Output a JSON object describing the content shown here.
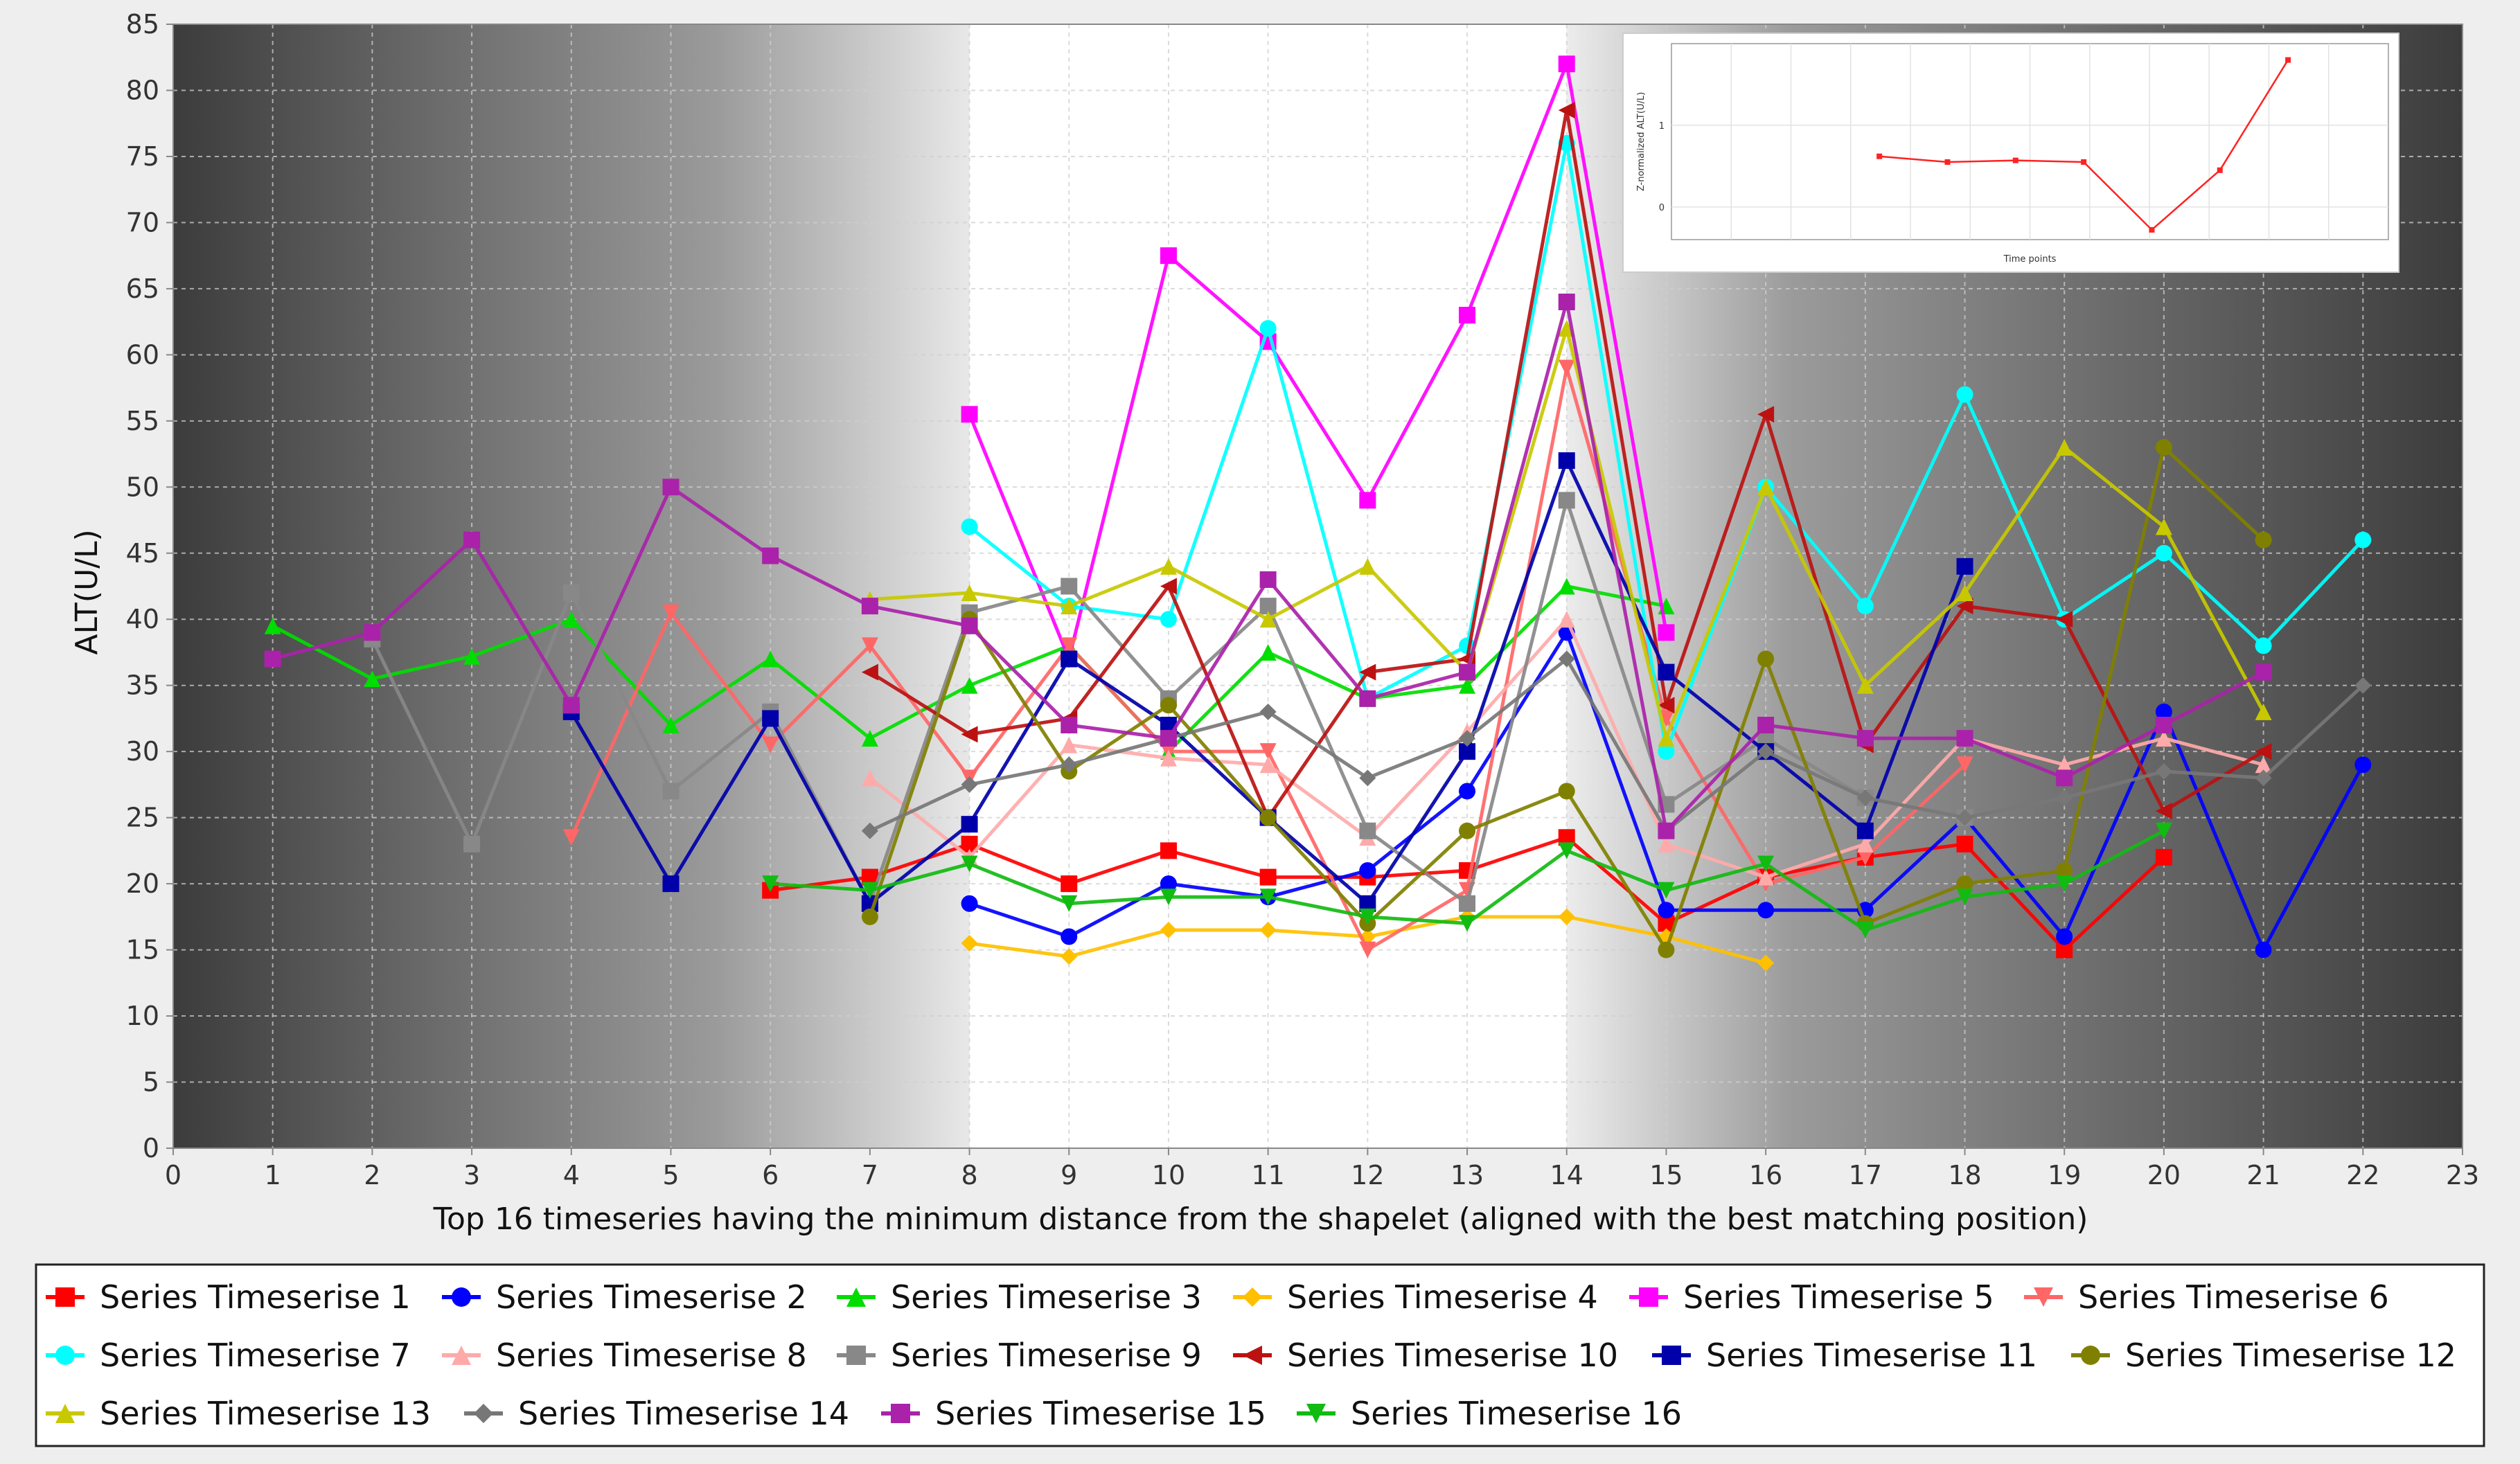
{
  "chart_data": {
    "type": "line",
    "title": "",
    "xlabel": "Top 16 timeseries having the minimum distance from the shapelet (aligned with the best matching position)",
    "ylabel": "ALT(U/L)",
    "xlim": [
      0,
      23
    ],
    "ylim": [
      0,
      85
    ],
    "x_ticks": [
      0,
      1,
      2,
      3,
      4,
      5,
      6,
      7,
      8,
      9,
      10,
      11,
      12,
      13,
      14,
      15,
      16,
      17,
      18,
      19,
      20,
      21,
      22,
      23
    ],
    "y_ticks": [
      0,
      5,
      10,
      15,
      20,
      25,
      30,
      35,
      40,
      45,
      50,
      55,
      60,
      65,
      70,
      75,
      80,
      85
    ],
    "grid": true,
    "legend_position": "bottom",
    "shapelet_region": [
      8,
      14
    ],
    "series": [
      {
        "name": "Series Timeserise 1",
        "color": "#ff0000",
        "marker": "square",
        "points": [
          [
            6,
            19.5
          ],
          [
            7,
            20.5
          ],
          [
            8,
            23
          ],
          [
            9,
            20
          ],
          [
            10,
            22.5
          ],
          [
            11,
            20.5
          ],
          [
            12,
            20.5
          ],
          [
            13,
            21
          ],
          [
            14,
            23.5
          ],
          [
            15,
            17
          ],
          [
            16,
            20.5
          ],
          [
            17,
            22
          ],
          [
            18,
            23
          ],
          [
            19,
            15
          ],
          [
            20,
            22
          ]
        ]
      },
      {
        "name": "Series Timeserise 2",
        "color": "#0000ff",
        "marker": "circle",
        "points": [
          [
            8,
            18.5
          ],
          [
            9,
            16
          ],
          [
            10,
            20
          ],
          [
            11,
            19
          ],
          [
            12,
            21
          ],
          [
            13,
            27
          ],
          [
            14,
            39
          ],
          [
            15,
            18
          ],
          [
            16,
            18
          ],
          [
            17,
            18
          ],
          [
            18,
            25
          ],
          [
            19,
            16
          ],
          [
            20,
            33
          ],
          [
            21,
            15
          ],
          [
            22,
            29
          ]
        ]
      },
      {
        "name": "Series Timeserise 3",
        "color": "#00dd00",
        "marker": "triangle-up",
        "points": [
          [
            1,
            39.5
          ],
          [
            2,
            35.5
          ],
          [
            3,
            37.2
          ],
          [
            4,
            40
          ],
          [
            5,
            32
          ],
          [
            6,
            37
          ],
          [
            7,
            31
          ],
          [
            8,
            35
          ],
          [
            9,
            38
          ],
          [
            10,
            30
          ],
          [
            11,
            37.5
          ],
          [
            12,
            34
          ],
          [
            13,
            35
          ],
          [
            14,
            42.5
          ],
          [
            15,
            41
          ]
        ]
      },
      {
        "name": "Series Timeserise 4",
        "color": "#ffc000",
        "marker": "diamond",
        "points": [
          [
            8,
            15.5
          ],
          [
            9,
            14.5
          ],
          [
            10,
            16.5
          ],
          [
            11,
            16.5
          ],
          [
            12,
            16
          ],
          [
            13,
            17.5
          ],
          [
            14,
            17.5
          ],
          [
            15,
            16
          ],
          [
            16,
            14
          ]
        ]
      },
      {
        "name": "Series Timeserise 5",
        "color": "#ff00ff",
        "marker": "square",
        "points": [
          [
            8,
            55.5
          ],
          [
            9,
            37
          ],
          [
            10,
            67.5
          ],
          [
            11,
            61
          ],
          [
            12,
            49
          ],
          [
            13,
            63
          ],
          [
            14,
            82
          ],
          [
            15,
            39
          ]
        ]
      },
      {
        "name": "Series Timeserise 6",
        "color": "#ff6666",
        "marker": "triangle-down",
        "points": [
          [
            4,
            23.5
          ],
          [
            5,
            40.5
          ],
          [
            6,
            30.5
          ],
          [
            7,
            38
          ],
          [
            8,
            28
          ],
          [
            9,
            38
          ],
          [
            10,
            30
          ],
          [
            11,
            30
          ],
          [
            12,
            15
          ],
          [
            13,
            19.5
          ],
          [
            14,
            59
          ],
          [
            15,
            32.5
          ],
          [
            16,
            20
          ],
          [
            17,
            22
          ],
          [
            18,
            29
          ]
        ]
      },
      {
        "name": "Series Timeserise 7",
        "color": "#00ffff",
        "marker": "circle",
        "points": [
          [
            8,
            47
          ],
          [
            9,
            41
          ],
          [
            10,
            40
          ],
          [
            11,
            62
          ],
          [
            12,
            34
          ],
          [
            13,
            38
          ],
          [
            14,
            76
          ],
          [
            15,
            30
          ],
          [
            16,
            50
          ],
          [
            17,
            41
          ],
          [
            18,
            57
          ],
          [
            19,
            40
          ],
          [
            20,
            45
          ],
          [
            21,
            38
          ],
          [
            22,
            46
          ]
        ]
      },
      {
        "name": "Series Timeserise 8",
        "color": "#ffaaaa",
        "marker": "triangle-up",
        "points": [
          [
            7,
            28
          ],
          [
            8,
            22
          ],
          [
            9,
            30.5
          ],
          [
            10,
            29.5
          ],
          [
            11,
            29
          ],
          [
            12,
            23.5
          ],
          [
            13,
            31.5
          ],
          [
            14,
            40
          ],
          [
            15,
            23
          ],
          [
            16,
            20.5
          ],
          [
            17,
            23
          ],
          [
            18,
            31
          ],
          [
            19,
            29
          ],
          [
            20,
            31
          ],
          [
            21,
            29
          ]
        ]
      },
      {
        "name": "Series Timeserise 9",
        "color": "#888888",
        "marker": "square",
        "points": [
          [
            2,
            38.5
          ],
          [
            3,
            23
          ],
          [
            4,
            42
          ],
          [
            5,
            27
          ],
          [
            6,
            33
          ],
          [
            7,
            18.5
          ],
          [
            8,
            40.5
          ],
          [
            9,
            42.5
          ],
          [
            10,
            34
          ],
          [
            11,
            41
          ],
          [
            12,
            24
          ],
          [
            13,
            18.5
          ],
          [
            14,
            49
          ],
          [
            15,
            26
          ],
          [
            16,
            31
          ],
          [
            17,
            26.5
          ],
          [
            18,
            25
          ]
        ]
      },
      {
        "name": "Series Timeserise 10",
        "color": "#bb1111",
        "marker": "triangle-left",
        "points": [
          [
            7,
            36
          ],
          [
            8,
            31.3
          ],
          [
            9,
            32.5
          ],
          [
            10,
            42.5
          ],
          [
            11,
            25
          ],
          [
            12,
            36
          ],
          [
            13,
            37
          ],
          [
            14,
            78.5
          ],
          [
            15,
            33.5
          ],
          [
            16,
            55.5
          ],
          [
            17,
            30.5
          ],
          [
            18,
            41
          ],
          [
            19,
            40
          ],
          [
            20,
            25.5
          ],
          [
            21,
            30
          ]
        ]
      },
      {
        "name": "Series Timeserise 11",
        "color": "#0000aa",
        "marker": "square",
        "points": [
          [
            4,
            33
          ],
          [
            5,
            20
          ],
          [
            6,
            32.5
          ],
          [
            7,
            18.5
          ],
          [
            8,
            24.5
          ],
          [
            9,
            37
          ],
          [
            10,
            32
          ],
          [
            11,
            25
          ],
          [
            12,
            18.5
          ],
          [
            13,
            30
          ],
          [
            14,
            52
          ],
          [
            15,
            36
          ],
          [
            16,
            30
          ],
          [
            17,
            24
          ],
          [
            18,
            44
          ]
        ]
      },
      {
        "name": "Series Timeserise 12",
        "color": "#808000",
        "marker": "circle",
        "points": [
          [
            7,
            17.5
          ],
          [
            8,
            40
          ],
          [
            9,
            28.5
          ],
          [
            10,
            33.5
          ],
          [
            11,
            25
          ],
          [
            12,
            17
          ],
          [
            13,
            24
          ],
          [
            14,
            27
          ],
          [
            15,
            15
          ],
          [
            16,
            37
          ],
          [
            17,
            17
          ],
          [
            18,
            20
          ],
          [
            19,
            21
          ],
          [
            20,
            53
          ],
          [
            21,
            46
          ]
        ]
      },
      {
        "name": "Series Timeserise 13",
        "color": "#c8c800",
        "marker": "triangle-up",
        "points": [
          [
            7,
            41.5
          ],
          [
            8,
            42
          ],
          [
            9,
            41
          ],
          [
            10,
            44
          ],
          [
            11,
            40
          ],
          [
            12,
            44
          ],
          [
            13,
            36
          ],
          [
            14,
            62
          ],
          [
            15,
            31
          ],
          [
            16,
            50
          ],
          [
            17,
            35
          ],
          [
            18,
            42
          ],
          [
            19,
            53
          ],
          [
            20,
            47
          ],
          [
            21,
            33
          ]
        ]
      },
      {
        "name": "Series Timeserise 14",
        "color": "#777777",
        "marker": "diamond",
        "points": [
          [
            7,
            24
          ],
          [
            8,
            27.5
          ],
          [
            9,
            29
          ],
          [
            10,
            31
          ],
          [
            11,
            33
          ],
          [
            12,
            28
          ],
          [
            13,
            31
          ],
          [
            14,
            37
          ],
          [
            15,
            24
          ],
          [
            16,
            30
          ],
          [
            17,
            26.5
          ],
          [
            18,
            25
          ],
          [
            19,
            26.5
          ],
          [
            20,
            28.5
          ],
          [
            21,
            28
          ],
          [
            22,
            35
          ]
        ]
      },
      {
        "name": "Series Timeserise 15",
        "color": "#aa22aa",
        "marker": "square",
        "points": [
          [
            1,
            37
          ],
          [
            2,
            39
          ],
          [
            3,
            46
          ],
          [
            4,
            33.5
          ],
          [
            5,
            50
          ],
          [
            6,
            44.8
          ],
          [
            7,
            41
          ],
          [
            8,
            39.5
          ],
          [
            9,
            32
          ],
          [
            10,
            31
          ],
          [
            11,
            43
          ],
          [
            12,
            34
          ],
          [
            13,
            36
          ],
          [
            14,
            64
          ],
          [
            15,
            24
          ],
          [
            16,
            32
          ],
          [
            17,
            31
          ],
          [
            18,
            31
          ],
          [
            19,
            28
          ],
          [
            20,
            32
          ],
          [
            21,
            36
          ]
        ]
      },
      {
        "name": "Series Timeserise 16",
        "color": "#11bb11",
        "marker": "triangle-down",
        "points": [
          [
            6,
            20
          ],
          [
            7,
            19.5
          ],
          [
            8,
            21.5
          ],
          [
            9,
            18.5
          ],
          [
            10,
            19
          ],
          [
            11,
            19
          ],
          [
            12,
            17.5
          ],
          [
            13,
            17
          ],
          [
            14,
            22.5
          ],
          [
            15,
            19.5
          ],
          [
            16,
            21.5
          ],
          [
            17,
            16.5
          ],
          [
            18,
            19
          ],
          [
            19,
            20
          ],
          [
            20,
            24
          ]
        ]
      }
    ],
    "inset": {
      "type": "line",
      "xlabel": "Time points",
      "ylabel": "Z-normalized ALT(U/L)",
      "y_ticks": [
        0,
        1
      ],
      "color": "#ff2222",
      "values": [
        0.62,
        0.55,
        0.57,
        0.55,
        -0.28,
        0.45,
        1.8
      ]
    }
  }
}
